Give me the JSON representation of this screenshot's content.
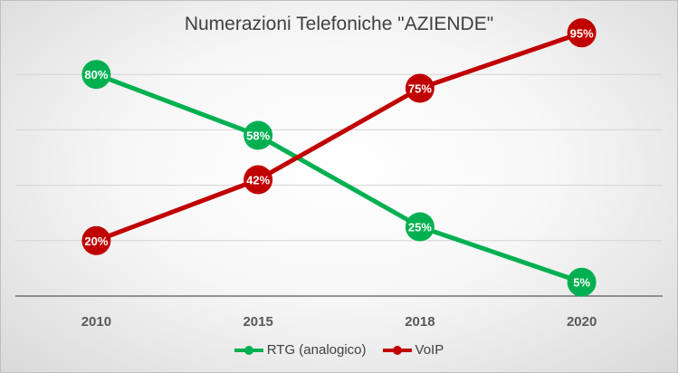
{
  "chart_data": {
    "type": "line",
    "title": "Numerazioni Telefoniche \"AZIENDE\"",
    "xlabel": "",
    "ylabel": "",
    "categories": [
      "2010",
      "2015",
      "2018",
      "2020"
    ],
    "ylim": [
      0,
      100
    ],
    "grid": true,
    "legend": "bottom",
    "series": [
      {
        "name": "RTG (analogico)",
        "values": [
          80,
          58,
          25,
          5
        ],
        "labels": [
          "80%",
          "58%",
          "25%",
          "5%"
        ],
        "color": "#00b050"
      },
      {
        "name": "VoIP",
        "values": [
          20,
          42,
          75,
          95
        ],
        "labels": [
          "20%",
          "42%",
          "75%",
          "95%"
        ],
        "color": "#c00000"
      }
    ]
  }
}
